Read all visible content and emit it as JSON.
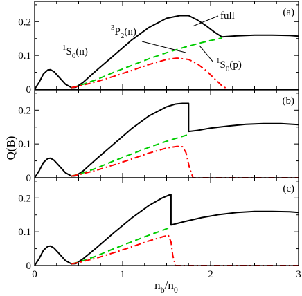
{
  "chart_data": [
    {
      "type": "line",
      "panel_label": "(a)",
      "xlim": [
        0,
        3
      ],
      "ylim": [
        0,
        0.26
      ],
      "x_ticks": [
        "0",
        "1",
        "2",
        "3"
      ],
      "y_ticks": [
        "0",
        "0.1",
        "0.2"
      ],
      "annotations": [
        {
          "sup": "1",
          "main": "S",
          "sub": "0",
          "tail": "(n)"
        },
        {
          "sup": "3",
          "main": "P",
          "sub": "2",
          "tail": "(n)"
        },
        {
          "sup": "",
          "main": "full",
          "sub": "",
          "tail": ""
        },
        {
          "sup": "1",
          "main": "S",
          "sub": "0",
          "tail": "(p)"
        }
      ],
      "series": [
        {
          "style": "solid",
          "color": "#000000",
          "x": [
            0,
            0.05,
            0.1,
            0.15,
            0.18,
            0.22,
            0.28,
            0.35,
            0.42,
            0.47,
            0.55,
            0.7,
            0.9,
            1.1,
            1.3,
            1.5,
            1.65,
            1.75,
            1.85,
            1.95,
            2.05,
            2.13,
            2.3,
            2.5,
            2.7,
            2.9,
            3.0
          ],
          "y": [
            0,
            0.02,
            0.045,
            0.057,
            0.058,
            0.052,
            0.035,
            0.015,
            0.005,
            0.006,
            0.02,
            0.055,
            0.1,
            0.145,
            0.183,
            0.21,
            0.218,
            0.218,
            0.205,
            0.188,
            0.168,
            0.155,
            0.158,
            0.16,
            0.16,
            0.159,
            0.157
          ]
        },
        {
          "style": "dashed",
          "color": "#00cc00",
          "x": [
            0.42,
            0.5,
            0.7,
            0.9,
            1.1,
            1.3,
            1.5,
            1.7,
            1.9,
            2.1,
            2.13
          ],
          "y": [
            0.005,
            0.01,
            0.028,
            0.05,
            0.07,
            0.09,
            0.108,
            0.124,
            0.138,
            0.15,
            0.152
          ]
        },
        {
          "style": "dashdot",
          "color": "#ff0000",
          "x": [
            0.42,
            0.5,
            0.7,
            0.9,
            1.1,
            1.3,
            1.5,
            1.62,
            1.75,
            1.85,
            1.95,
            2.05,
            2.13,
            2.2,
            2.5,
            3.0
          ],
          "y": [
            0.005,
            0.009,
            0.022,
            0.038,
            0.055,
            0.073,
            0.088,
            0.092,
            0.088,
            0.075,
            0.055,
            0.03,
            0.01,
            0,
            0,
            0
          ]
        }
      ]
    },
    {
      "type": "line",
      "panel_label": "(b)",
      "xlim": [
        0,
        3
      ],
      "ylim": [
        0,
        0.26
      ],
      "x_ticks": [
        "0",
        "1",
        "2",
        "3"
      ],
      "y_ticks": [
        "0",
        "0.1",
        "0.2"
      ],
      "series": [
        {
          "style": "solid",
          "color": "#000000",
          "x": [
            0,
            0.05,
            0.1,
            0.15,
            0.18,
            0.22,
            0.28,
            0.35,
            0.42,
            0.47,
            0.55,
            0.7,
            0.9,
            1.1,
            1.3,
            1.5,
            1.6,
            1.68,
            1.74,
            1.75,
            1.75,
            1.85,
            2.0,
            2.2,
            2.4,
            2.6,
            2.8,
            3.0
          ],
          "y": [
            0,
            0.02,
            0.045,
            0.057,
            0.058,
            0.052,
            0.035,
            0.015,
            0.005,
            0.006,
            0.02,
            0.055,
            0.1,
            0.145,
            0.183,
            0.21,
            0.218,
            0.22,
            0.22,
            0.22,
            0.137,
            0.14,
            0.147,
            0.153,
            0.158,
            0.16,
            0.16,
            0.157
          ]
        },
        {
          "style": "dashed",
          "color": "#00cc00",
          "x": [
            0.42,
            0.5,
            0.7,
            0.9,
            1.1,
            1.3,
            1.5,
            1.7,
            1.75
          ],
          "y": [
            0.005,
            0.01,
            0.028,
            0.05,
            0.07,
            0.09,
            0.108,
            0.124,
            0.128
          ]
        },
        {
          "style": "dashdot",
          "color": "#ff0000",
          "x": [
            0.42,
            0.5,
            0.7,
            0.9,
            1.1,
            1.3,
            1.5,
            1.62,
            1.68,
            1.72,
            1.76,
            1.8,
            2.2,
            2.6,
            3.0
          ],
          "y": [
            0.005,
            0.009,
            0.022,
            0.038,
            0.055,
            0.073,
            0.088,
            0.093,
            0.092,
            0.075,
            0.03,
            0,
            0,
            0,
            0
          ]
        }
      ]
    },
    {
      "type": "line",
      "panel_label": "(c)",
      "xlim": [
        0,
        3
      ],
      "ylim": [
        0,
        0.26
      ],
      "x_ticks": [
        "0",
        "1",
        "2",
        "3"
      ],
      "y_ticks": [
        "0",
        "0.1",
        "0.2"
      ],
      "series": [
        {
          "style": "solid",
          "color": "#000000",
          "x": [
            0,
            0.05,
            0.1,
            0.15,
            0.18,
            0.22,
            0.28,
            0.35,
            0.42,
            0.47,
            0.55,
            0.7,
            0.9,
            1.1,
            1.3,
            1.45,
            1.54,
            1.55,
            1.55,
            1.7,
            1.9,
            2.1,
            2.3,
            2.5,
            2.7,
            2.9,
            3.0
          ],
          "y": [
            0,
            0.02,
            0.045,
            0.057,
            0.058,
            0.052,
            0.035,
            0.015,
            0.005,
            0.006,
            0.02,
            0.052,
            0.097,
            0.14,
            0.178,
            0.2,
            0.21,
            0.21,
            0.12,
            0.13,
            0.142,
            0.151,
            0.157,
            0.16,
            0.16,
            0.159,
            0.157
          ]
        },
        {
          "style": "dashed",
          "color": "#00cc00",
          "x": [
            0.42,
            0.5,
            0.7,
            0.9,
            1.1,
            1.3,
            1.45,
            1.55
          ],
          "y": [
            0.005,
            0.01,
            0.028,
            0.05,
            0.07,
            0.09,
            0.104,
            0.114
          ]
        },
        {
          "style": "dashdot",
          "color": "#ff0000",
          "x": [
            0.42,
            0.5,
            0.7,
            0.9,
            1.1,
            1.3,
            1.45,
            1.52,
            1.55,
            1.57,
            1.6,
            2.0,
            2.5,
            3.0
          ],
          "y": [
            0.005,
            0.009,
            0.022,
            0.038,
            0.055,
            0.073,
            0.085,
            0.09,
            0.07,
            0.03,
            0,
            0,
            0,
            0
          ]
        }
      ]
    }
  ],
  "y_axis_title": "Q(B)",
  "x_axis_title": {
    "main": "n",
    "sub": "b",
    "slash": "/n",
    "sub2": "0"
  }
}
